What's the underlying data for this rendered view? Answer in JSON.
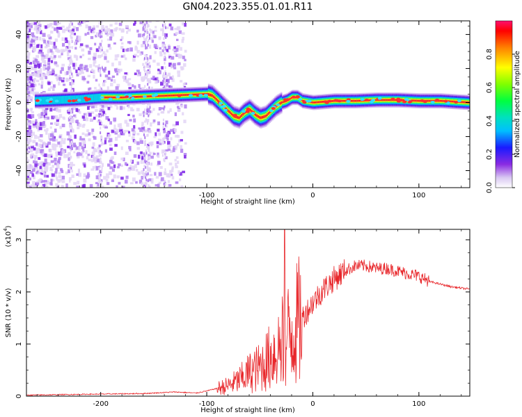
{
  "title": "GN04.2023.355.01.01.R11",
  "chart_data": [
    {
      "type": "heatmap",
      "xlabel": "Height of straight line (km)",
      "ylabel": "Frequency (Hz)",
      "xlim": [
        -270,
        148
      ],
      "ylim": [
        -50,
        48
      ],
      "xticks": [
        -200,
        -100,
        0,
        100
      ],
      "yticks": [
        -40,
        -20,
        0,
        20,
        40
      ],
      "ridge": {
        "x": [
          -260,
          -240,
          -220,
          -200,
          -180,
          -160,
          -140,
          -120,
          -100,
          -95,
          -90,
          -85,
          -80,
          -75,
          -70,
          -65,
          -60,
          -55,
          -50,
          -45,
          -40,
          -35,
          -30,
          -25,
          -20,
          -15,
          -10,
          0,
          20,
          40,
          60,
          80,
          100,
          120,
          148
        ],
        "y": [
          1,
          1.5,
          2,
          3,
          3,
          3.5,
          4,
          4.5,
          5,
          4,
          1,
          -2,
          -5,
          -8,
          -9,
          -6,
          -4,
          -7,
          -9,
          -8,
          -5,
          -2,
          0,
          1,
          3,
          3,
          1,
          0,
          1,
          1,
          1.5,
          1.5,
          1,
          1,
          0
        ]
      },
      "colorbar": {
        "label": "Normalized spectral amplitude",
        "ticks": [
          0.0,
          0.2,
          0.4,
          0.6,
          0.8
        ],
        "range": [
          0,
          1
        ]
      }
    },
    {
      "type": "line",
      "xlabel": "Height of straight line (km)",
      "ylabel": "SNR (10 * v/v)",
      "yscale_label": "(x10",
      "yscale_exp": "4",
      "yscale_close": ")",
      "xlim": [
        -270,
        148
      ],
      "ylim": [
        0,
        3.2
      ],
      "xticks": [
        -200,
        -100,
        0,
        100
      ],
      "yticks": [
        0,
        1,
        2,
        3
      ],
      "color": "#e8262a",
      "envelope": {
        "x": [
          -270,
          -200,
          -160,
          -130,
          -110,
          -100,
          -90,
          -80,
          -70,
          -60,
          -50,
          -40,
          -30,
          -20,
          -10,
          0,
          10,
          20,
          30,
          40,
          50,
          60,
          70,
          80,
          90,
          100,
          105,
          110,
          120,
          130,
          148
        ],
        "y": [
          0.02,
          0.04,
          0.05,
          0.08,
          0.06,
          0.1,
          0.15,
          0.2,
          0.3,
          0.45,
          0.55,
          0.75,
          1.0,
          1.25,
          1.5,
          1.8,
          2.05,
          2.25,
          2.4,
          2.5,
          2.5,
          2.45,
          2.45,
          2.4,
          2.35,
          2.3,
          2.25,
          2.2,
          2.15,
          2.1,
          2.05
        ]
      }
    }
  ]
}
